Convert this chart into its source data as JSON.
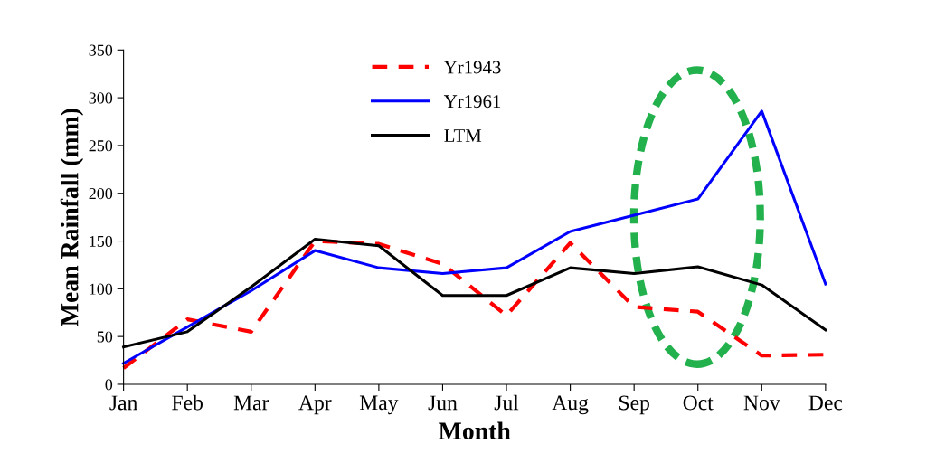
{
  "chart_data": {
    "type": "line",
    "xlabel": "Month",
    "ylabel": "Mean Rainfall (mm)",
    "categories": [
      "Jan",
      "Feb",
      "Mar",
      "Apr",
      "May",
      "Jun",
      "Jul",
      "Aug",
      "Sep",
      "Oct",
      "Nov",
      "Dec"
    ],
    "series": [
      {
        "name": "Yr1943",
        "color": "#ff0000",
        "line_style": "dashed",
        "values": [
          17,
          68,
          55,
          150,
          147,
          126,
          72,
          148,
          81,
          76,
          30,
          31
        ]
      },
      {
        "name": "Yr1961",
        "color": "#0000ff",
        "line_style": "solid",
        "values": [
          22,
          60,
          98,
          140,
          122,
          116,
          122,
          160,
          177,
          194,
          286,
          105
        ]
      },
      {
        "name": "LTM",
        "color": "#000000",
        "line_style": "solid",
        "values": [
          39,
          55,
          102,
          152,
          145,
          93,
          93,
          122,
          116,
          123,
          104,
          57
        ]
      }
    ],
    "ylim": [
      0,
      350
    ],
    "yticks": [
      0,
      50,
      100,
      150,
      200,
      250,
      300,
      350
    ],
    "grid": false,
    "legend": "top center",
    "marker": "none"
  }
}
